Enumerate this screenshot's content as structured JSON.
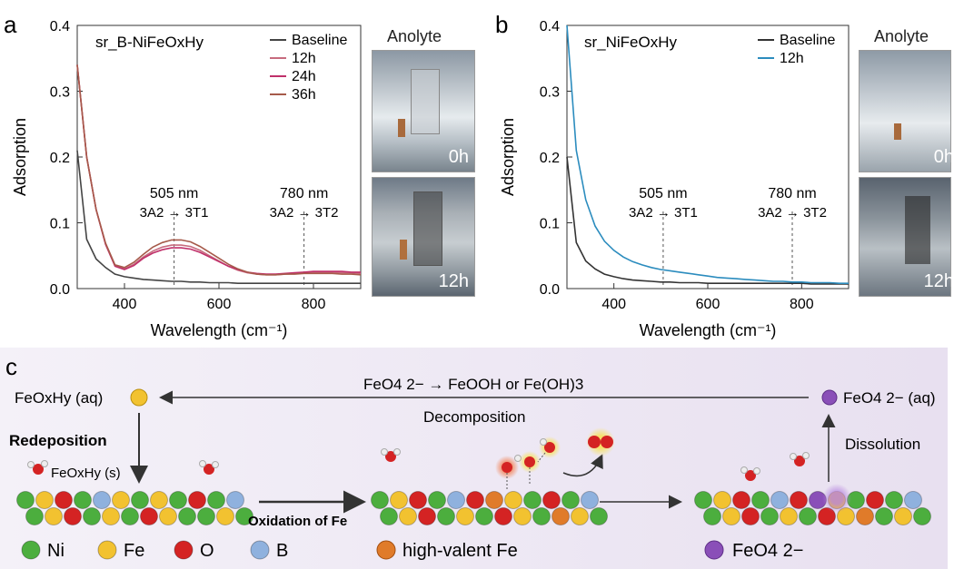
{
  "panels": [
    {
      "letter": "a",
      "sample_label": "sr_B-NiFeOxHy",
      "anolyte_title": "Anolyte",
      "photo_labels": [
        "0h",
        "12h"
      ],
      "chart_data": {
        "type": "line",
        "xlabel": "Wavelength (cm⁻¹)",
        "ylabel": "Adsorption",
        "xlim": [
          300,
          900
        ],
        "ylim": [
          0,
          0.4
        ],
        "xticks": [
          "400",
          "600",
          "800"
        ],
        "yticks": [
          "0.0",
          "0.1",
          "0.2",
          "0.3",
          "0.4"
        ],
        "legend_placement": "top-right",
        "x": [
          300,
          320,
          340,
          360,
          380,
          400,
          420,
          440,
          460,
          480,
          500,
          520,
          540,
          560,
          580,
          600,
          620,
          640,
          660,
          680,
          700,
          720,
          740,
          760,
          780,
          800,
          820,
          840,
          860,
          880,
          900
        ],
        "series": [
          {
            "name": "Baseline",
            "color": "#444444",
            "values": [
              0.21,
              0.075,
              0.045,
              0.032,
              0.022,
              0.018,
              0.016,
              0.014,
              0.013,
              0.012,
              0.011,
              0.011,
              0.01,
              0.01,
              0.009,
              0.009,
              0.009,
              0.008,
              0.008,
              0.008,
              0.008,
              0.008,
              0.008,
              0.008,
              0.008,
              0.008,
              0.008,
              0.008,
              0.008,
              0.008,
              0.008
            ]
          },
          {
            "name": "12h",
            "color": "#c76b7e",
            "values": [
              0.34,
              0.2,
              0.12,
              0.068,
              0.035,
              0.03,
              0.037,
              0.048,
              0.057,
              0.063,
              0.066,
              0.066,
              0.064,
              0.058,
              0.05,
              0.042,
              0.034,
              0.028,
              0.024,
              0.022,
              0.021,
              0.021,
              0.022,
              0.023,
              0.024,
              0.025,
              0.025,
              0.025,
              0.024,
              0.024,
              0.023
            ]
          },
          {
            "name": "24h",
            "color": "#c0306a",
            "values": [
              0.34,
              0.2,
              0.12,
              0.067,
              0.034,
              0.029,
              0.035,
              0.046,
              0.054,
              0.059,
              0.062,
              0.062,
              0.06,
              0.055,
              0.048,
              0.041,
              0.034,
              0.029,
              0.025,
              0.023,
              0.022,
              0.022,
              0.023,
              0.024,
              0.025,
              0.026,
              0.026,
              0.026,
              0.026,
              0.025,
              0.025
            ]
          },
          {
            "name": "36h",
            "color": "#a65a4a",
            "values": [
              0.34,
              0.2,
              0.12,
              0.069,
              0.036,
              0.032,
              0.04,
              0.052,
              0.063,
              0.07,
              0.074,
              0.074,
              0.071,
              0.064,
              0.055,
              0.046,
              0.037,
              0.03,
              0.025,
              0.022,
              0.021,
              0.021,
              0.022,
              0.022,
              0.023,
              0.023,
              0.023,
              0.023,
              0.022,
              0.022,
              0.021
            ]
          }
        ],
        "annotations": [
          {
            "x": 505,
            "text_top": "505 nm",
            "text_bottom": "3A2 → 3T1"
          },
          {
            "x": 780,
            "text_top": "780 nm",
            "text_bottom": "3A2 → 3T2"
          }
        ]
      }
    },
    {
      "letter": "b",
      "sample_label": "sr_NiFeOxHy",
      "anolyte_title": "Anolyte",
      "photo_labels": [
        "0h",
        "12h"
      ],
      "chart_data": {
        "type": "line",
        "xlabel": "Wavelength (cm⁻¹)",
        "ylabel": "Adsorption",
        "xlim": [
          300,
          900
        ],
        "ylim": [
          0,
          0.4
        ],
        "xticks": [
          "400",
          "600",
          "800"
        ],
        "yticks": [
          "0.0",
          "0.1",
          "0.2",
          "0.3",
          "0.4"
        ],
        "legend_placement": "top-right",
        "x": [
          300,
          320,
          340,
          360,
          380,
          400,
          420,
          440,
          460,
          480,
          500,
          520,
          540,
          560,
          580,
          600,
          620,
          640,
          660,
          680,
          700,
          720,
          740,
          760,
          780,
          800,
          820,
          840,
          860,
          880,
          900
        ],
        "series": [
          {
            "name": "Baseline",
            "color": "#333333",
            "values": [
              0.2,
              0.07,
              0.042,
              0.03,
              0.022,
              0.018,
              0.015,
              0.013,
              0.012,
              0.011,
              0.01,
              0.01,
              0.009,
              0.009,
              0.009,
              0.008,
              0.008,
              0.008,
              0.008,
              0.008,
              0.008,
              0.008,
              0.008,
              0.008,
              0.008,
              0.008,
              0.007,
              0.007,
              0.007,
              0.007,
              0.007
            ]
          },
          {
            "name": "12h",
            "color": "#2b8cbe",
            "values": [
              0.4,
              0.21,
              0.135,
              0.095,
              0.072,
              0.058,
              0.048,
              0.041,
              0.036,
              0.032,
              0.029,
              0.027,
              0.025,
              0.023,
              0.021,
              0.019,
              0.017,
              0.016,
              0.015,
              0.014,
              0.013,
              0.012,
              0.011,
              0.011,
              0.01,
              0.01,
              0.009,
              0.009,
              0.009,
              0.008,
              0.008
            ]
          }
        ],
        "annotations": [
          {
            "x": 505,
            "text_top": "505 nm",
            "text_bottom": "3A2 → 3T1"
          },
          {
            "x": 780,
            "text_top": "780 nm",
            "text_bottom": "3A2 → 3T2"
          }
        ]
      }
    }
  ],
  "scheme": {
    "letter": "c",
    "top_reaction_main": "FeO4 2− → FeOOH or Fe(OH)3",
    "decomposition": "Decomposition",
    "feoxhy_aq": "FeOxHy (aq)",
    "feo4_aq": "FeO4 2− (aq)",
    "redeposition": "Redeposition",
    "feoxhy_s": "FeOxHy (s)",
    "oxidation_of_fe": "Oxidation of Fe",
    "dissolution": "Dissolution",
    "legend": [
      {
        "label": "Ni",
        "color": "#4cae3e"
      },
      {
        "label": "Fe",
        "color": "#f2c230"
      },
      {
        "label": "O",
        "color": "#d42323"
      },
      {
        "label": "B",
        "color": "#8fb1de"
      }
    ],
    "high_valent_fe": {
      "label": "high-valent Fe",
      "color": "#e07b2a"
    },
    "feo4": {
      "label": "FeO4 2−",
      "color": "#8a4fb8"
    }
  }
}
